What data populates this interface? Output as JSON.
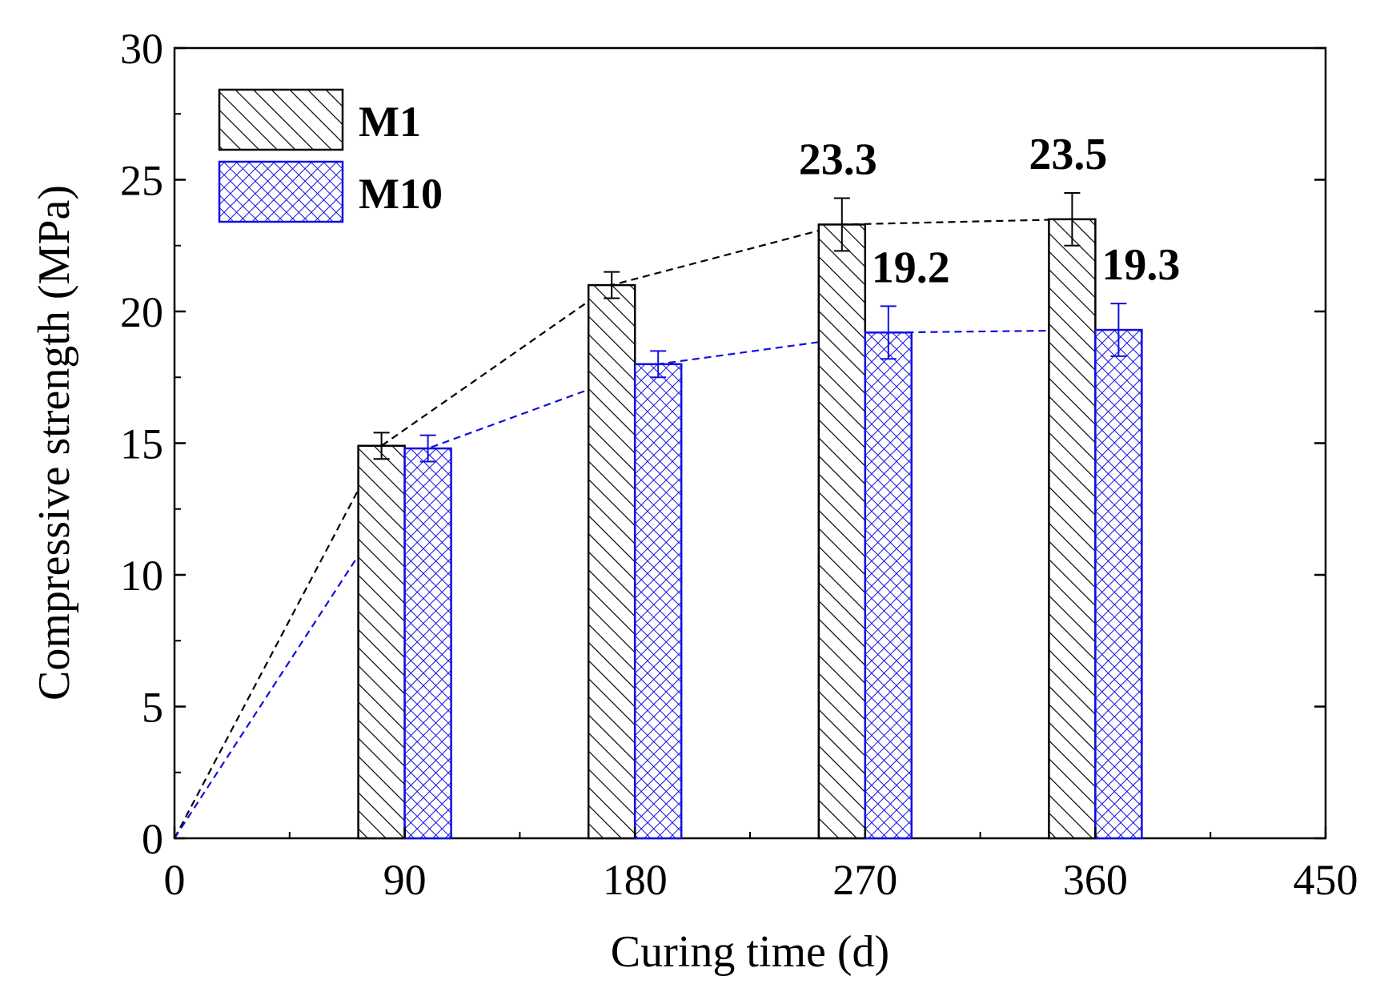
{
  "chart_data": {
    "type": "bar",
    "xlabel": "Curing time (d)",
    "ylabel": "Compressive strength (MPa)",
    "xlim": [
      0,
      450
    ],
    "ylim": [
      0,
      30
    ],
    "xticks": [
      0,
      90,
      180,
      270,
      360,
      450
    ],
    "yticks": [
      0,
      5,
      10,
      15,
      20,
      25,
      30
    ],
    "grid": false,
    "legend_position": "top-left",
    "categories": [
      90,
      180,
      270,
      360
    ],
    "series": [
      {
        "name": "M1",
        "color": "#000000",
        "pattern": "diagonal-hatch",
        "values": [
          14.9,
          21.0,
          23.3,
          23.5
        ],
        "errors": [
          0.5,
          0.5,
          1.0,
          1.0
        ],
        "trend_line": {
          "style": "dashed",
          "from_origin": true
        }
      },
      {
        "name": "M10",
        "color": "#1010e0",
        "pattern": "cross-hatch",
        "values": [
          14.8,
          18.0,
          19.2,
          19.3
        ],
        "errors": [
          0.5,
          0.5,
          1.0,
          1.0
        ],
        "trend_line": {
          "style": "dashed",
          "from_origin": true
        }
      }
    ],
    "annotations": [
      {
        "series": "M1",
        "category": 270,
        "text": "23.3"
      },
      {
        "series": "M1",
        "category": 360,
        "text": "23.5"
      },
      {
        "series": "M10",
        "category": 270,
        "text": "19.2"
      },
      {
        "series": "M10",
        "category": 360,
        "text": "19.3"
      }
    ]
  }
}
